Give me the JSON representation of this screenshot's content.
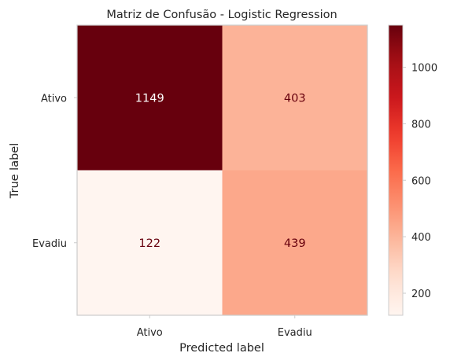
{
  "chart_data": {
    "type": "heatmap",
    "title": "Matriz de Confusão - Logistic Regression",
    "xlabel": "Predicted label",
    "ylabel": "True label",
    "x_categories": [
      "Ativo",
      "Evadiu"
    ],
    "y_categories": [
      "Ativo",
      "Evadiu"
    ],
    "values": [
      [
        1149,
        403
      ],
      [
        122,
        439
      ]
    ],
    "colormap": "Reds",
    "colorbar": {
      "range": [
        122,
        1149
      ],
      "ticks": [
        200,
        400,
        600,
        800,
        1000
      ],
      "tick_labels": [
        "200",
        "400",
        "600",
        "800",
        "1000"
      ]
    },
    "cell_text_color": "#67000d",
    "grid": false
  }
}
